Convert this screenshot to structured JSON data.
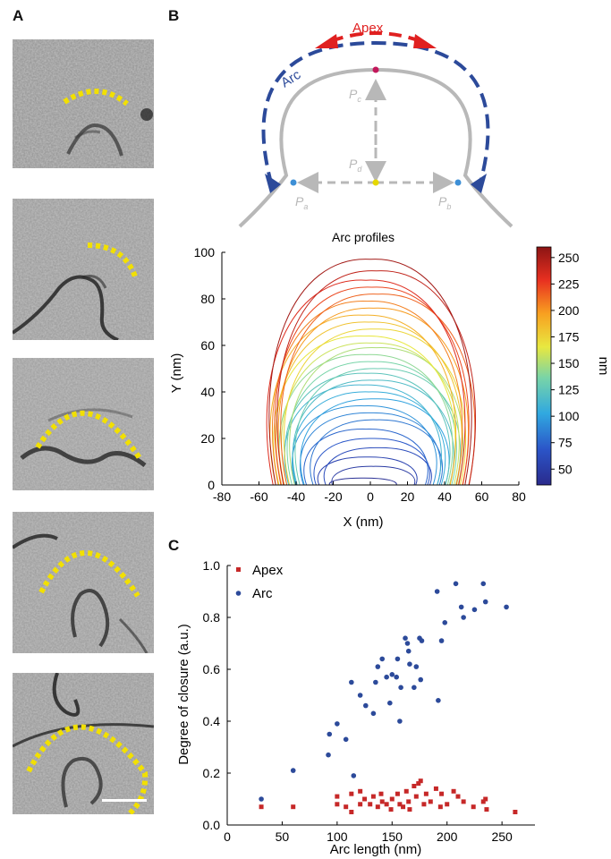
{
  "panels": {
    "a": "A",
    "b": "B",
    "c": "C"
  },
  "colors": {
    "arc_blue": "#2c4a9a",
    "apex_red": "#e02020",
    "highlight_yellow": "#f2e000",
    "gray": "#b8b8b8"
  },
  "schematic": {
    "apex_label": "Apex",
    "arc_label": "Arc",
    "pa": "a",
    "pb": "b",
    "pc": "c",
    "pd": "d",
    "p_symbol": "P"
  },
  "tomogram_tiles": [
    "tile-1",
    "tile-2",
    "tile-3",
    "tile-4",
    "tile-5"
  ],
  "chart_data": [
    {
      "type": "line",
      "title": "Arc profiles",
      "xlabel": "X (nm)",
      "ylabel": "Y (nm)",
      "xlim": [
        -80,
        80
      ],
      "ylim": [
        0,
        100
      ],
      "xticks": [
        -80,
        -60,
        -40,
        -20,
        0,
        20,
        40,
        60,
        80
      ],
      "yticks": [
        0,
        20,
        40,
        60,
        80,
        100
      ],
      "colorbar": {
        "label": "nm",
        "range": [
          35,
          260
        ],
        "ticks": [
          50,
          75,
          100,
          125,
          150,
          175,
          200,
          225,
          250
        ]
      },
      "series_profile": [
        {
          "arc": 40,
          "h": 3,
          "w": 14
        },
        {
          "arc": 48,
          "h": 8,
          "w": 18
        },
        {
          "arc": 55,
          "h": 12,
          "w": 22
        },
        {
          "arc": 62,
          "h": 16,
          "w": 24
        },
        {
          "arc": 70,
          "h": 20,
          "w": 26
        },
        {
          "arc": 76,
          "h": 24,
          "w": 28
        },
        {
          "arc": 82,
          "h": 28,
          "w": 30
        },
        {
          "arc": 88,
          "h": 31,
          "w": 32
        },
        {
          "arc": 94,
          "h": 34,
          "w": 33
        },
        {
          "arc": 100,
          "h": 37,
          "w": 34
        },
        {
          "arc": 106,
          "h": 40,
          "w": 35
        },
        {
          "arc": 112,
          "h": 43,
          "w": 36
        },
        {
          "arc": 118,
          "h": 45,
          "w": 37
        },
        {
          "arc": 124,
          "h": 48,
          "w": 38
        },
        {
          "arc": 130,
          "h": 50,
          "w": 38
        },
        {
          "arc": 136,
          "h": 53,
          "w": 39
        },
        {
          "arc": 142,
          "h": 56,
          "w": 40
        },
        {
          "arc": 150,
          "h": 59,
          "w": 40
        },
        {
          "arc": 158,
          "h": 61,
          "w": 41
        },
        {
          "arc": 166,
          "h": 64,
          "w": 42
        },
        {
          "arc": 174,
          "h": 67,
          "w": 42
        },
        {
          "arc": 182,
          "h": 70,
          "w": 43
        },
        {
          "arc": 190,
          "h": 73,
          "w": 43
        },
        {
          "arc": 198,
          "h": 76,
          "w": 44
        },
        {
          "arc": 206,
          "h": 79,
          "w": 44
        },
        {
          "arc": 214,
          "h": 82,
          "w": 45
        },
        {
          "arc": 222,
          "h": 85,
          "w": 45
        },
        {
          "arc": 232,
          "h": 88,
          "w": 46
        },
        {
          "arc": 242,
          "h": 92,
          "w": 46
        },
        {
          "arc": 252,
          "h": 97,
          "w": 47
        }
      ]
    },
    {
      "type": "scatter",
      "xlabel": "Arc length (nm)",
      "ylabel": "Degree of closure (a.u.)",
      "xlim": [
        0,
        280
      ],
      "ylim": [
        0,
        1.0
      ],
      "xticks": [
        0,
        50,
        100,
        150,
        200,
        250
      ],
      "yticks": [
        0.0,
        0.2,
        0.4,
        0.6,
        0.8,
        1.0
      ],
      "legend": "top-left",
      "series": [
        {
          "name": "Apex",
          "marker": "square",
          "color": "#c62828",
          "points": [
            [
              31,
              0.07
            ],
            [
              60,
              0.07
            ],
            [
              100,
              0.08
            ],
            [
              100,
              0.11
            ],
            [
              108,
              0.07
            ],
            [
              113,
              0.05
            ],
            [
              113,
              0.12
            ],
            [
              121,
              0.08
            ],
            [
              121,
              0.13
            ],
            [
              125,
              0.1
            ],
            [
              130,
              0.08
            ],
            [
              133,
              0.11
            ],
            [
              137,
              0.07
            ],
            [
              140,
              0.12
            ],
            [
              141,
              0.09
            ],
            [
              145,
              0.08
            ],
            [
              149,
              0.06
            ],
            [
              150,
              0.1
            ],
            [
              155,
              0.12
            ],
            [
              157,
              0.08
            ],
            [
              160,
              0.07
            ],
            [
              163,
              0.13
            ],
            [
              165,
              0.09
            ],
            [
              166,
              0.06
            ],
            [
              170,
              0.15
            ],
            [
              172,
              0.11
            ],
            [
              174,
              0.16
            ],
            [
              176,
              0.17
            ],
            [
              179,
              0.08
            ],
            [
              181,
              0.12
            ],
            [
              185,
              0.09
            ],
            [
              190,
              0.14
            ],
            [
              194,
              0.07
            ],
            [
              195,
              0.12
            ],
            [
              200,
              0.08
            ],
            [
              206,
              0.13
            ],
            [
              210,
              0.11
            ],
            [
              215,
              0.09
            ],
            [
              224,
              0.07
            ],
            [
              233,
              0.09
            ],
            [
              235,
              0.1
            ],
            [
              236,
              0.06
            ],
            [
              262,
              0.05
            ]
          ]
        },
        {
          "name": "Arc",
          "marker": "circle",
          "color": "#2c4a9a",
          "points": [
            [
              31,
              0.1
            ],
            [
              60,
              0.21
            ],
            [
              92,
              0.27
            ],
            [
              93,
              0.35
            ],
            [
              100,
              0.39
            ],
            [
              108,
              0.33
            ],
            [
              113,
              0.55
            ],
            [
              115,
              0.19
            ],
            [
              121,
              0.5
            ],
            [
              126,
              0.46
            ],
            [
              133,
              0.43
            ],
            [
              135,
              0.55
            ],
            [
              137,
              0.61
            ],
            [
              141,
              0.64
            ],
            [
              145,
              0.57
            ],
            [
              148,
              0.47
            ],
            [
              150,
              0.58
            ],
            [
              154,
              0.57
            ],
            [
              155,
              0.64
            ],
            [
              157,
              0.4
            ],
            [
              158,
              0.53
            ],
            [
              162,
              0.72
            ],
            [
              164,
              0.7
            ],
            [
              165,
              0.67
            ],
            [
              166,
              0.62
            ],
            [
              170,
              0.53
            ],
            [
              172,
              0.61
            ],
            [
              175,
              0.72
            ],
            [
              176,
              0.56
            ],
            [
              177,
              0.71
            ],
            [
              191,
              0.9
            ],
            [
              192,
              0.48
            ],
            [
              195,
              0.71
            ],
            [
              198,
              0.78
            ],
            [
              208,
              0.93
            ],
            [
              213,
              0.84
            ],
            [
              215,
              0.8
            ],
            [
              225,
              0.83
            ],
            [
              233,
              0.93
            ],
            [
              235,
              0.86
            ],
            [
              254,
              0.84
            ]
          ]
        }
      ]
    }
  ]
}
